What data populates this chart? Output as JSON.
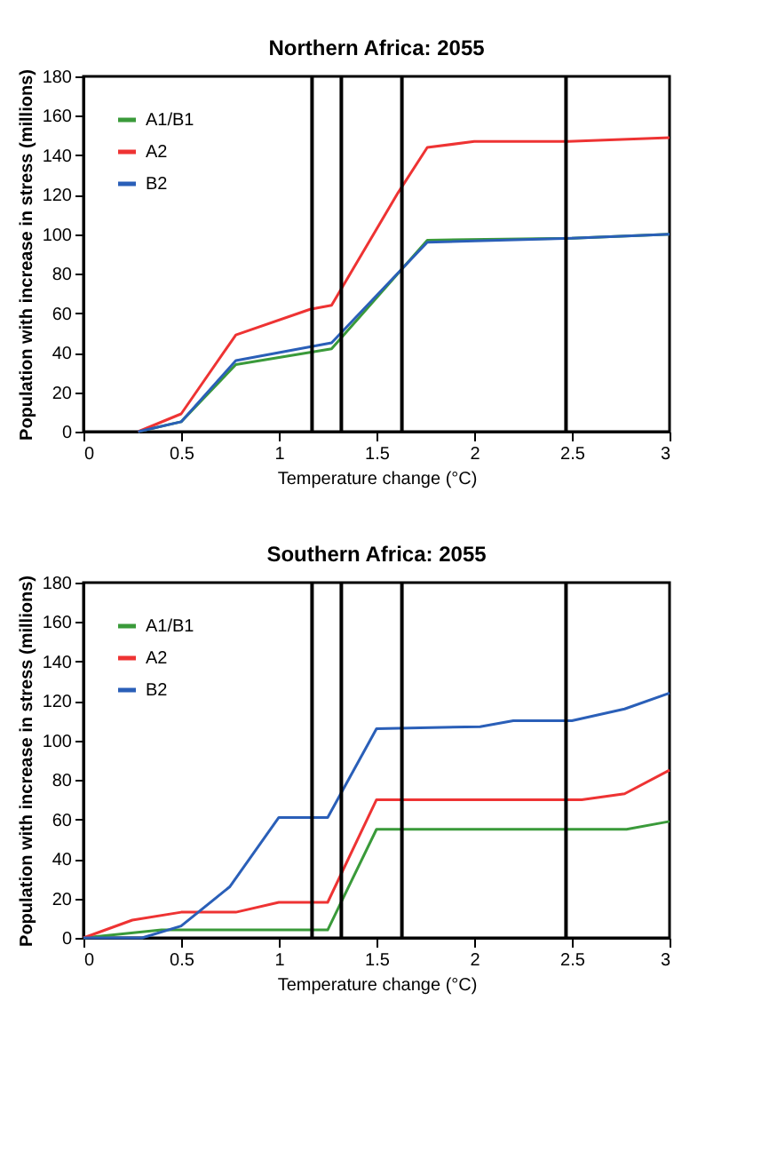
{
  "chart_data": [
    {
      "type": "line",
      "title": "Northern Africa: 2055",
      "xlabel": "Temperature change (°C)",
      "ylabel": "Population with increase in stress (millions)",
      "xlim": [
        0,
        3
      ],
      "xticks": [
        0,
        0.5,
        1,
        1.5,
        2,
        2.5,
        3
      ],
      "ylim": [
        0,
        180
      ],
      "yticks": [
        0,
        20,
        40,
        60,
        80,
        100,
        120,
        140,
        160,
        180
      ],
      "grid": false,
      "legend": "top left",
      "ref_lines": [
        {
          "axis": "x",
          "value": 1.17,
          "color": "#000000"
        },
        {
          "axis": "x",
          "value": 1.32,
          "color": "#000000"
        },
        {
          "axis": "x",
          "value": 1.63,
          "color": "#000000"
        },
        {
          "axis": "x",
          "value": 2.47,
          "color": "#000000"
        }
      ],
      "series": [
        {
          "name": "A1/B1",
          "color": "#3a9a3a",
          "x": [
            0.28,
            0.5,
            0.78,
            1.27,
            1.76,
            2.5,
            3
          ],
          "values": [
            0,
            5,
            34,
            42,
            97,
            98,
            100
          ]
        },
        {
          "name": "A2",
          "color": "#ee3333",
          "x": [
            0.28,
            0.5,
            0.78,
            1.16,
            1.27,
            1.61,
            1.76,
            2.0,
            2.48,
            3
          ],
          "values": [
            0,
            9,
            49,
            62,
            64,
            121,
            144,
            147,
            147,
            149
          ]
        },
        {
          "name": "B2",
          "color": "#2a5fb8",
          "x": [
            0.28,
            0.5,
            0.78,
            1.27,
            1.76,
            2.5,
            3
          ],
          "values": [
            0,
            5,
            36,
            45,
            96,
            98,
            100
          ]
        }
      ]
    },
    {
      "type": "line",
      "title": "Southern Africa: 2055",
      "xlabel": "Temperature change (°C)",
      "ylabel": "Population with increase in stress (millions)",
      "xlim": [
        0,
        3
      ],
      "xticks": [
        0,
        0.5,
        1,
        1.5,
        2,
        2.5,
        3
      ],
      "ylim": [
        0,
        180
      ],
      "yticks": [
        0,
        20,
        40,
        60,
        80,
        100,
        120,
        140,
        160,
        180
      ],
      "grid": false,
      "legend": "top left",
      "ref_lines": [
        {
          "axis": "x",
          "value": 1.17,
          "color": "#000000"
        },
        {
          "axis": "x",
          "value": 1.32,
          "color": "#000000"
        },
        {
          "axis": "x",
          "value": 1.63,
          "color": "#000000"
        },
        {
          "axis": "x",
          "value": 2.47,
          "color": "#000000"
        }
      ],
      "series": [
        {
          "name": "A1/B1",
          "color": "#3a9a3a",
          "x": [
            0,
            0.4,
            1.25,
            1.5,
            2.78,
            3
          ],
          "values": [
            0,
            4,
            4,
            55,
            55,
            59
          ]
        },
        {
          "name": "A2",
          "color": "#ee3333",
          "x": [
            0,
            0.25,
            0.5,
            0.78,
            1.0,
            1.25,
            1.5,
            2.55,
            2.77,
            3
          ],
          "values": [
            0,
            9,
            13,
            13,
            18,
            18,
            70,
            70,
            73,
            85
          ]
        },
        {
          "name": "B2",
          "color": "#2a5fb8",
          "x": [
            0,
            0.3,
            0.5,
            0.75,
            1.0,
            1.25,
            1.5,
            2.03,
            2.2,
            2.5,
            2.77,
            3
          ],
          "values": [
            0,
            0,
            6,
            26,
            61,
            61,
            106,
            107,
            110,
            110,
            116,
            124
          ]
        }
      ]
    }
  ]
}
